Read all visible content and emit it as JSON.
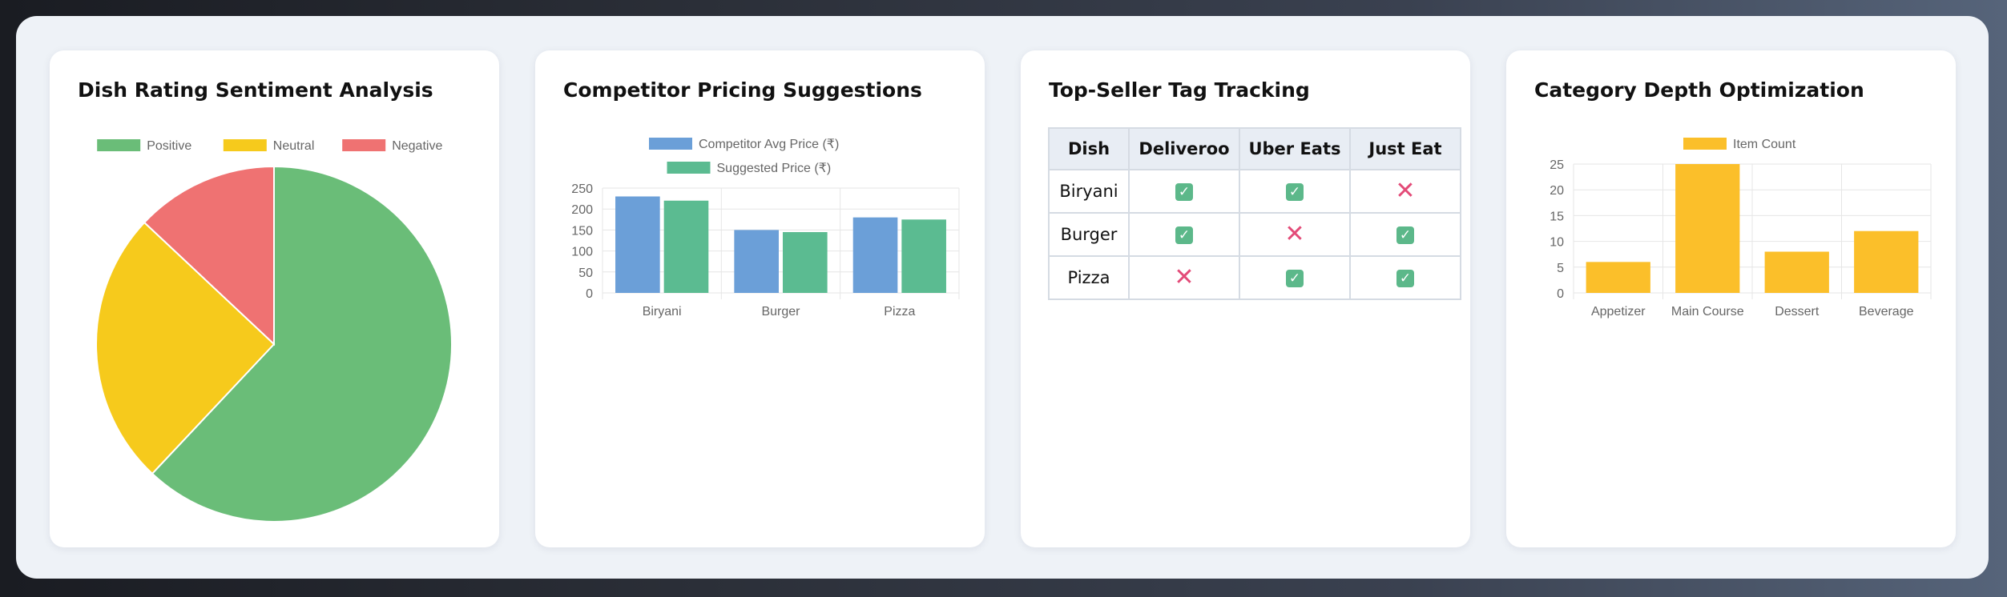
{
  "cards": [
    {
      "title": "Dish Rating Sentiment Analysis"
    },
    {
      "title": "Competitor Pricing Suggestions"
    },
    {
      "title": "Top-Seller Tag Tracking"
    },
    {
      "title": "Category Depth Optimization"
    }
  ],
  "chart_data": [
    {
      "type": "pie",
      "title": "Dish Rating Sentiment Analysis",
      "labels": [
        "Positive",
        "Neutral",
        "Negative"
      ],
      "values": [
        62,
        25,
        13
      ],
      "colors": [
        "#6abd78",
        "#f6ca1c",
        "#ef7272"
      ],
      "legend": "top"
    },
    {
      "type": "bar",
      "title": "Competitor Pricing Suggestions",
      "categories": [
        "Biryani",
        "Burger",
        "Pizza"
      ],
      "series": [
        {
          "name": "Competitor Avg Price (₹)",
          "values": [
            230,
            150,
            180
          ],
          "color": "#6b9fd8"
        },
        {
          "name": "Suggested Price (₹)",
          "values": [
            220,
            145,
            175
          ],
          "color": "#5bbb91"
        }
      ],
      "ylim": [
        0,
        250
      ],
      "yticks": [
        "0",
        "50",
        "100",
        "150",
        "200",
        "250"
      ],
      "grid": true,
      "legend": "top"
    },
    {
      "type": "table",
      "title": "Top-Seller Tag Tracking",
      "columns": [
        "Dish",
        "Deliveroo",
        "Uber Eats",
        "Just Eat"
      ],
      "rows": [
        {
          "dish": "Biryani",
          "tags": [
            true,
            true,
            false
          ]
        },
        {
          "dish": "Burger",
          "tags": [
            true,
            false,
            true
          ]
        },
        {
          "dish": "Pizza",
          "tags": [
            false,
            true,
            true
          ]
        }
      ],
      "yes_icon": "check-box-icon",
      "no_icon": "cross-icon"
    },
    {
      "type": "bar",
      "title": "Category Depth Optimization",
      "categories": [
        "Appetizer",
        "Main Course",
        "Dessert",
        "Beverage"
      ],
      "series": [
        {
          "name": "Item Count",
          "values": [
            6,
            25,
            8,
            12
          ],
          "color": "#fbbf2a"
        }
      ],
      "ylim": [
        0,
        25
      ],
      "yticks": [
        "0",
        "5",
        "10",
        "15",
        "20",
        "25"
      ],
      "grid": true,
      "legend": "top"
    }
  ]
}
